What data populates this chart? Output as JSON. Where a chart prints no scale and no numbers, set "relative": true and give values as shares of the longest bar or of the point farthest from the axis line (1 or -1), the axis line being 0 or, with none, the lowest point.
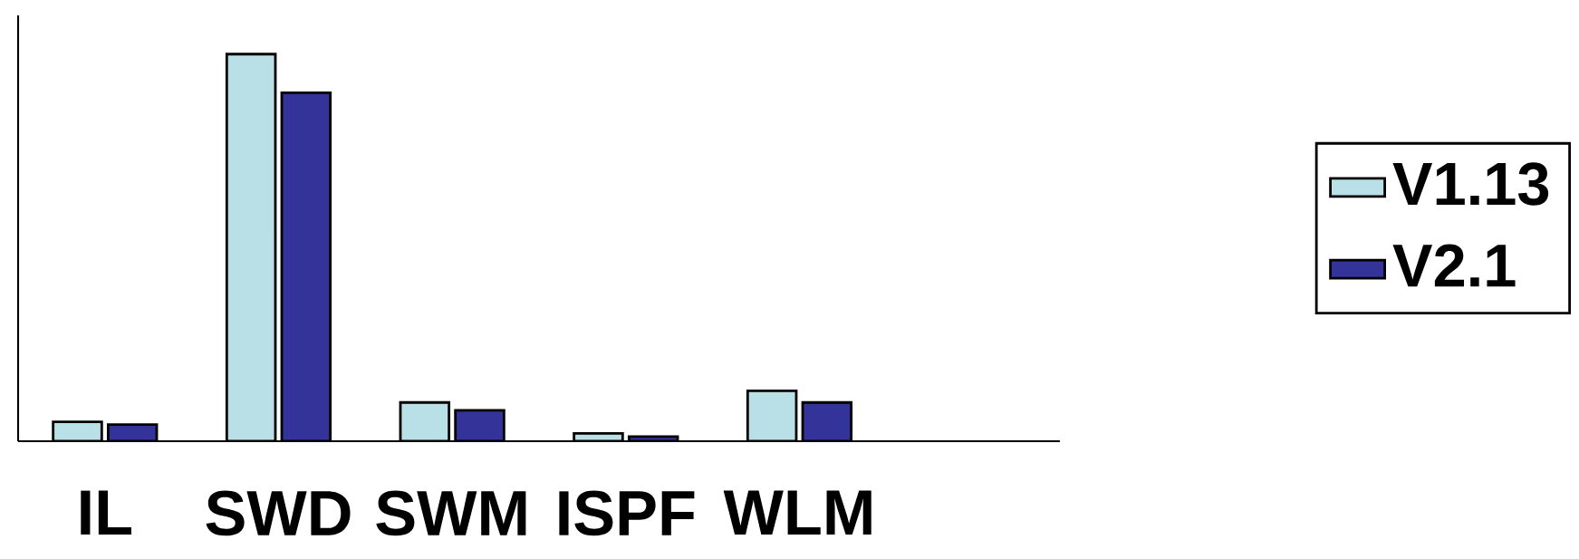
{
  "chart_data": {
    "type": "bar",
    "relative": true,
    "categories": [
      "IL",
      "SWD",
      "SWM",
      "ISPF",
      "WLM",
      null
    ],
    "series": [
      {
        "name": "V1.13",
        "color": "#b9e0e6",
        "values": [
          0.05,
          1,
          0.1,
          0.02,
          0.13,
          null
        ]
      },
      {
        "name": "V2.1",
        "color": "#333399",
        "values": [
          0.043,
          0.9,
          0.08,
          0.012,
          0.1,
          null
        ]
      }
    ],
    "legend": "right"
  }
}
